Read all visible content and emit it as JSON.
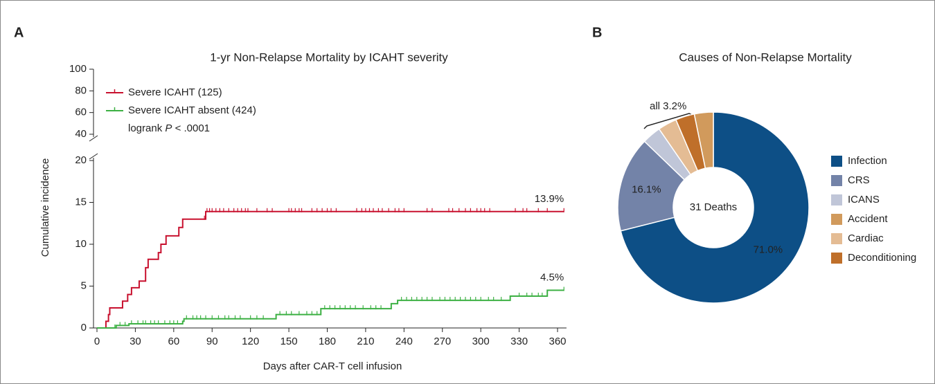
{
  "chart_data": [
    {
      "type": "line",
      "panel": "A",
      "title": "1-yr Non-Relapse Mortality by ICAHT severity",
      "x_label": "Days after CAR-T cell infusion",
      "y_label": "Cumulative incidence",
      "step": "post",
      "y_break": [
        20,
        40
      ],
      "xlim": [
        0,
        367
      ],
      "xticks": [
        0,
        30,
        60,
        90,
        120,
        150,
        180,
        210,
        240,
        270,
        300,
        330,
        360
      ],
      "ylim": [
        0,
        100
      ],
      "yticks": [
        0,
        5,
        10,
        15,
        20,
        40,
        60,
        80,
        100
      ],
      "legend": "upper left",
      "annotation": {
        "prefix": "logrank",
        "italic": "P",
        "suffix": "< .0001"
      },
      "series": [
        {
          "name": "Severe ICAHT (125)",
          "color": "#c8102e",
          "end_label": "13.9%",
          "x": [
            0,
            7,
            9,
            10,
            20,
            24,
            27,
            33,
            38,
            40,
            48,
            50,
            54,
            64,
            67,
            75,
            85,
            365
          ],
          "values": [
            0,
            0.8,
            1.6,
            2.4,
            3.2,
            4.0,
            4.8,
            5.6,
            7.2,
            8.2,
            9.0,
            10.0,
            11.0,
            12.0,
            13.0,
            13.0,
            13.9,
            13.9
          ],
          "censor": [
            84,
            86,
            88,
            90,
            93,
            96,
            99,
            103,
            107,
            110,
            113,
            116,
            118,
            125,
            133,
            137,
            150,
            152,
            155,
            158,
            160,
            168,
            172,
            176,
            180,
            183,
            187,
            203,
            207,
            210,
            213,
            216,
            220,
            223,
            228,
            233,
            236,
            240,
            258,
            262,
            275,
            278,
            283,
            288,
            292,
            297,
            300,
            303,
            307,
            327,
            333,
            336,
            345,
            352,
            365
          ]
        },
        {
          "name": "Severe ICAHT absent (424)",
          "color": "#3cb043",
          "end_label": "4.5%",
          "x": [
            0,
            7,
            15,
            25,
            67,
            68,
            135,
            140,
            163,
            175,
            225,
            230,
            235,
            320,
            323,
            350,
            352,
            365
          ],
          "values": [
            0,
            0,
            0.3,
            0.5,
            0.8,
            1.1,
            1.1,
            1.6,
            1.6,
            2.3,
            2.3,
            2.9,
            3.3,
            3.3,
            3.8,
            3.8,
            4.5,
            4.5
          ],
          "censor": [
            14,
            18,
            22,
            27,
            32,
            36,
            38,
            42,
            45,
            48,
            53,
            57,
            60,
            63,
            70,
            75,
            78,
            81,
            85,
            90,
            95,
            100,
            103,
            108,
            112,
            120,
            125,
            130,
            143,
            148,
            152,
            158,
            164,
            168,
            172,
            178,
            182,
            186,
            190,
            194,
            198,
            202,
            208,
            214,
            218,
            222,
            238,
            242,
            246,
            250,
            254,
            258,
            262,
            268,
            272,
            276,
            280,
            284,
            288,
            292,
            296,
            300,
            306,
            310,
            316,
            330,
            336,
            340,
            345,
            348,
            365
          ]
        }
      ]
    },
    {
      "type": "pie",
      "panel": "B",
      "title": "Causes of Non-Relapse Mortality",
      "center_label": "31 Deaths",
      "categories": [
        "Infection",
        "CRS",
        "ICANS",
        "Accident",
        "Cardiac",
        "Deconditioning"
      ],
      "values": [
        71.0,
        16.1,
        3.2,
        3.2,
        3.2,
        3.2
      ],
      "value_labels": [
        "71.0%",
        "16.1%",
        null,
        null,
        null,
        null
      ],
      "group_label": "all 3.2%",
      "colors": [
        "#0d4f86",
        "#7383a8",
        "#c0c6d8",
        "#d19a5c",
        "#e4bc94",
        "#bf6f2a"
      ],
      "slice_order": [
        0,
        1,
        2,
        4,
        5,
        3
      ],
      "legend": "right"
    }
  ]
}
